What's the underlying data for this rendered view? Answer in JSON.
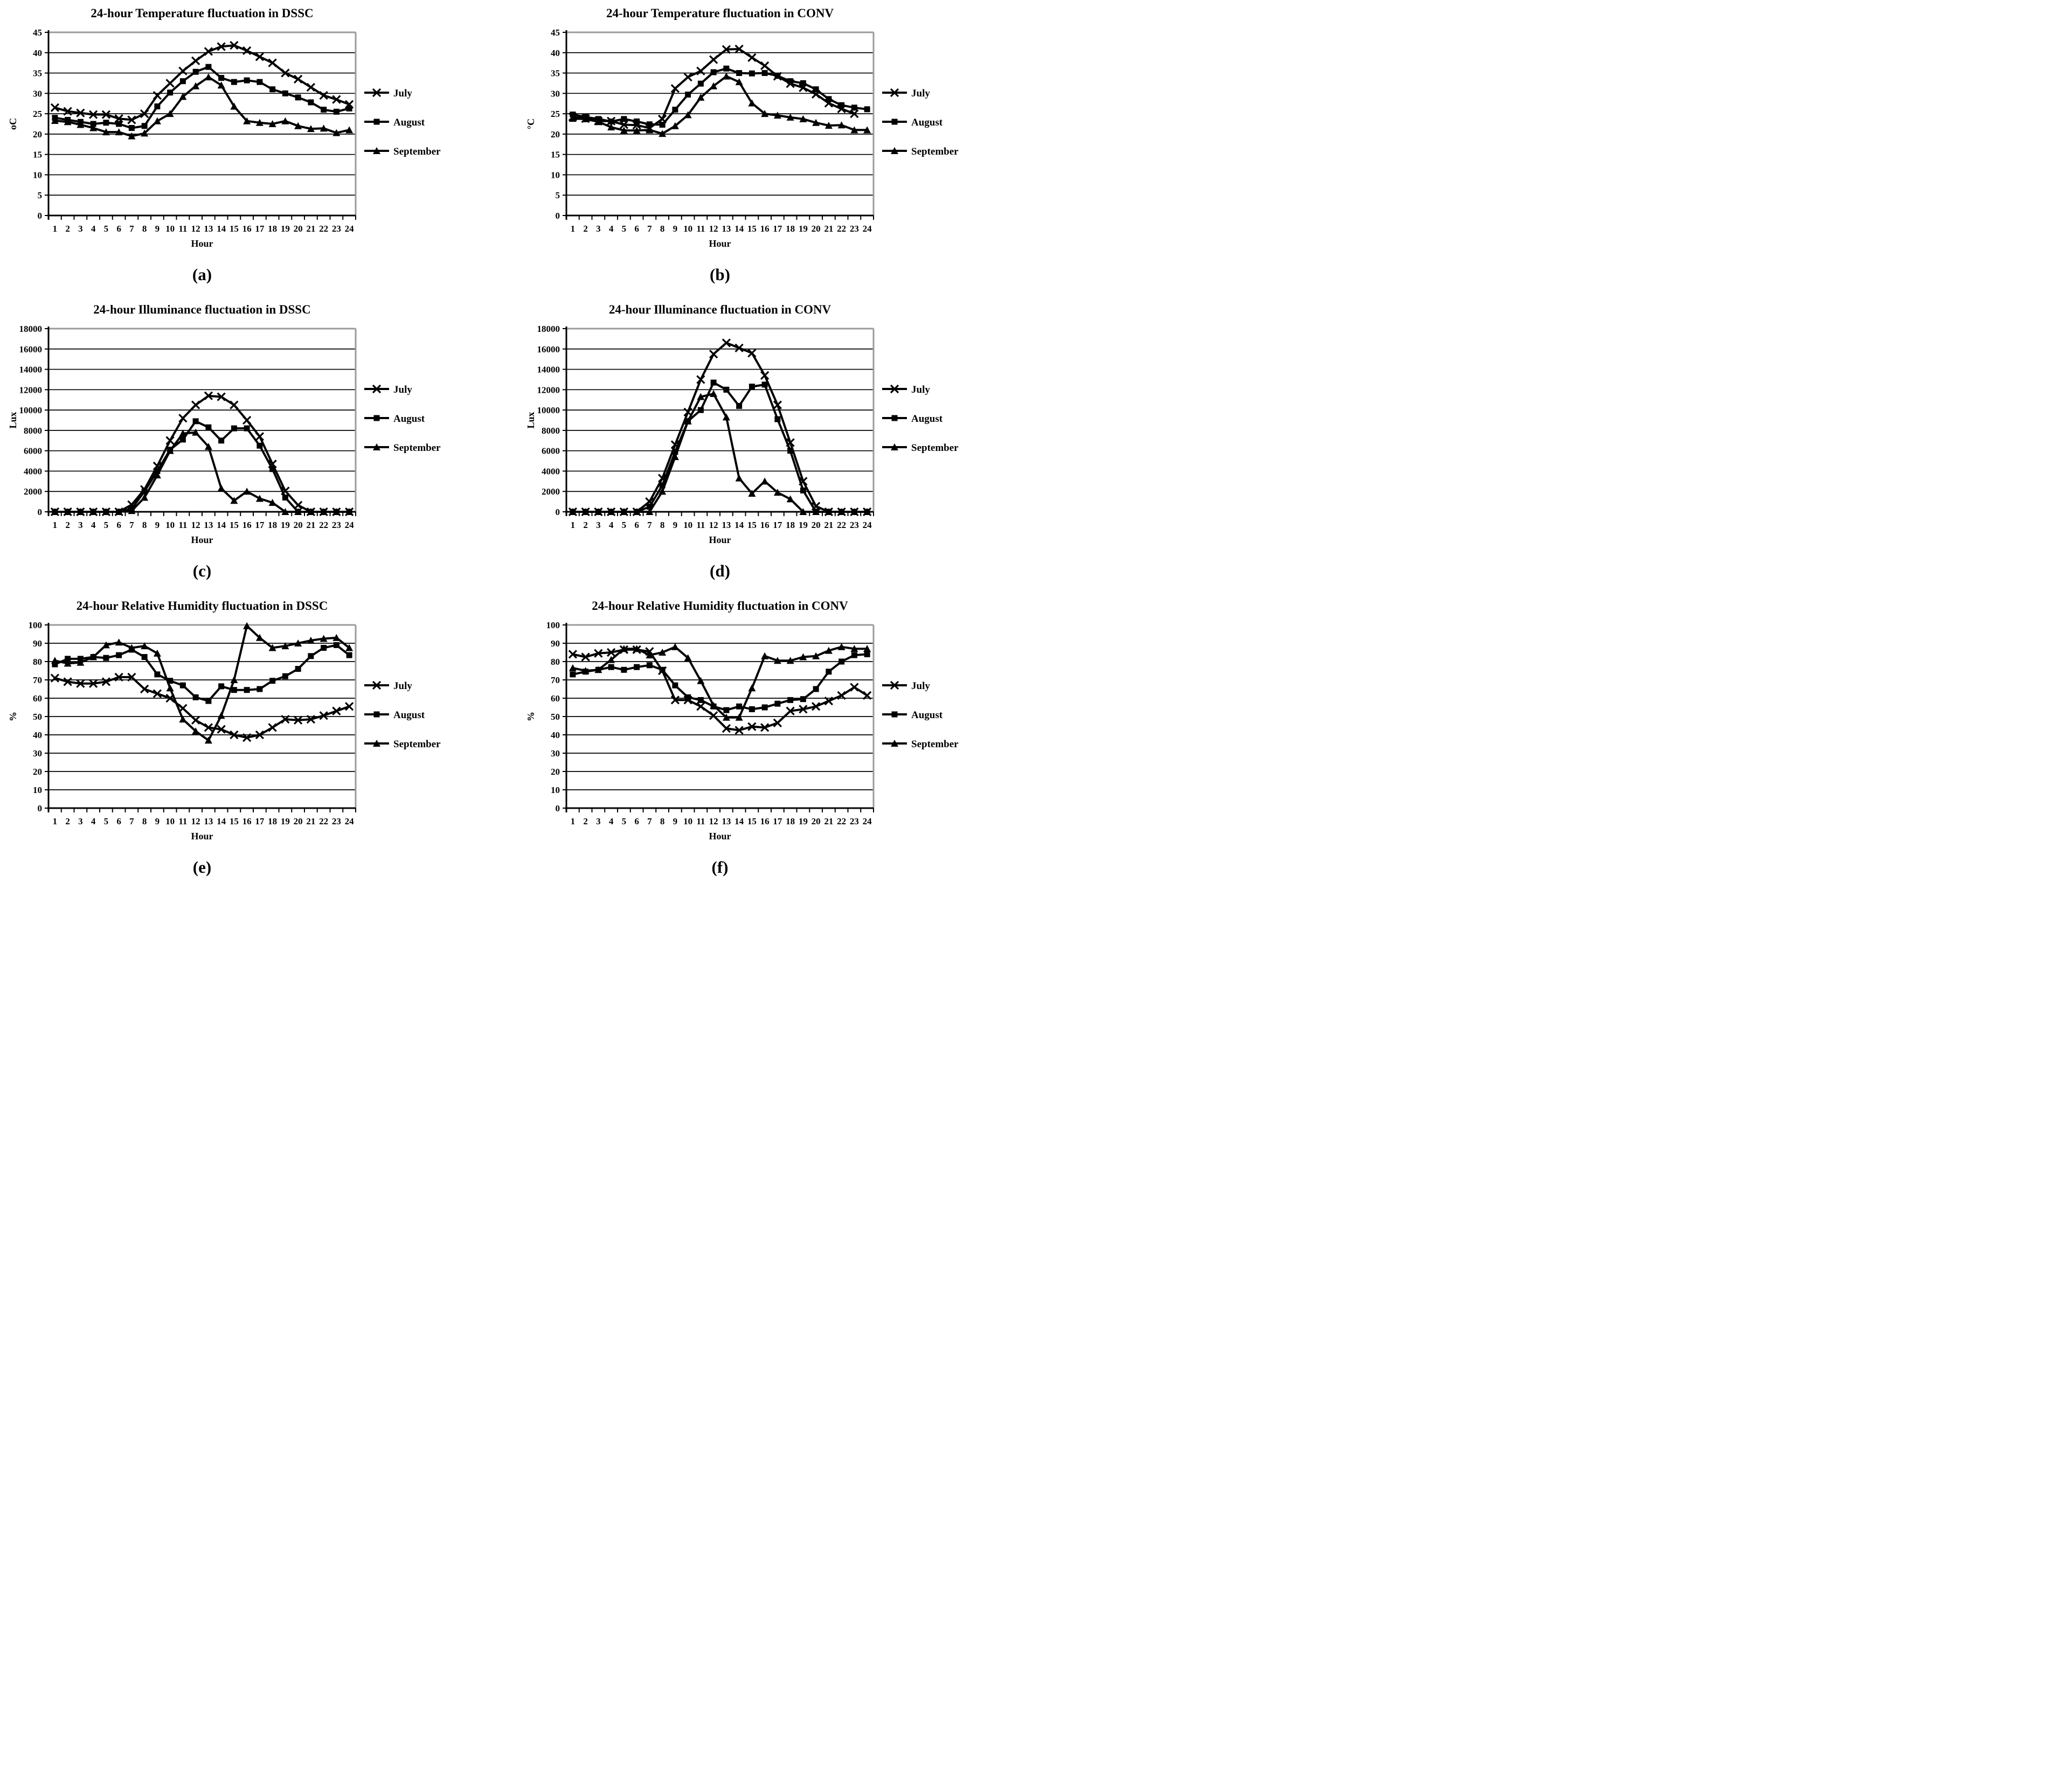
{
  "figure": {
    "type": "six-panel line chart figure",
    "line_color": "#000000",
    "plot_border_top_color": "#9b9b9b",
    "background": "#ffffff",
    "legend_position": "right",
    "marker_legend": {
      "July": "x-marker",
      "August": "filled-square-marker",
      "September": "filled-triangle-marker"
    }
  },
  "chart_data": [
    {
      "id": "a",
      "type": "line",
      "caption": "(a)",
      "title": "24-hour Temperature fluctuation in DSSC",
      "xlabel": "Hour",
      "ylabel": "oC",
      "ylim": [
        0,
        45
      ],
      "yticks": [
        0,
        5,
        10,
        15,
        20,
        25,
        30,
        35,
        40,
        45
      ],
      "x": [
        1,
        2,
        3,
        4,
        5,
        6,
        7,
        8,
        9,
        10,
        11,
        12,
        13,
        14,
        15,
        16,
        17,
        18,
        19,
        20,
        21,
        22,
        23,
        24
      ],
      "grid": true,
      "series": [
        {
          "name": "July",
          "marker": "x",
          "values": [
            26.5,
            25.6,
            25.2,
            24.8,
            24.8,
            23.8,
            23.5,
            25,
            29.5,
            32.5,
            35.5,
            38,
            40.3,
            41.5,
            41.8,
            40.5,
            39,
            37.5,
            35,
            33.5,
            31.5,
            29.5,
            28.5,
            27.3
          ]
        },
        {
          "name": "August",
          "marker": "square",
          "values": [
            24,
            23.5,
            23,
            22.5,
            22.8,
            22.5,
            21.5,
            22,
            26.8,
            30.2,
            33,
            35.3,
            36.5,
            33.8,
            32.8,
            33.2,
            32.8,
            31,
            30,
            29,
            27.8,
            26,
            25.5,
            26.3
          ]
        },
        {
          "name": "September",
          "marker": "triangle",
          "values": [
            23.3,
            23,
            22.3,
            21.5,
            20.5,
            20.5,
            19.5,
            20.2,
            23.2,
            25,
            29.2,
            31.8,
            34,
            32,
            26.8,
            23.2,
            22.8,
            22.5,
            23.2,
            22,
            21.3,
            21.4,
            20.3,
            21
          ]
        }
      ]
    },
    {
      "id": "b",
      "type": "line",
      "caption": "(b)",
      "title": "24-hour Temperature fluctuation in CONV",
      "xlabel": "Hour",
      "ylabel": "°C",
      "ylim": [
        0,
        45
      ],
      "yticks": [
        0,
        5,
        10,
        15,
        20,
        25,
        30,
        35,
        40,
        45
      ],
      "x": [
        1,
        2,
        3,
        4,
        5,
        6,
        7,
        8,
        9,
        10,
        11,
        12,
        13,
        14,
        15,
        16,
        17,
        18,
        19,
        20,
        21,
        22,
        23,
        24
      ],
      "grid": true,
      "series": [
        {
          "name": "July",
          "marker": "x",
          "values": [
            24.2,
            23.8,
            23.2,
            23.2,
            22.3,
            22.2,
            21.5,
            23.7,
            31.2,
            34,
            35.5,
            38.3,
            40.8,
            40.9,
            38.8,
            36.8,
            34.2,
            32.4,
            31.4,
            29.8,
            27.6,
            26.2,
            25,
            null
          ]
        },
        {
          "name": "August",
          "marker": "square",
          "values": [
            24.8,
            24.2,
            23.7,
            23.1,
            23.7,
            23.1,
            22.4,
            22.3,
            26,
            29.7,
            32.4,
            35.2,
            36.1,
            35,
            34.9,
            35,
            34.3,
            33,
            32.5,
            31,
            28.6,
            27.1,
            26.5,
            26.1
          ]
        },
        {
          "name": "September",
          "marker": "triangle",
          "values": [
            23.8,
            23.7,
            23,
            21.7,
            20.9,
            20.9,
            21,
            20.1,
            22,
            24.7,
            29,
            31.8,
            34.2,
            32.8,
            27.6,
            25,
            24.6,
            24.1,
            23.7,
            22.8,
            22.1,
            22.2,
            21,
            21
          ]
        }
      ]
    },
    {
      "id": "c",
      "type": "line",
      "caption": "(c)",
      "title": "24-hour Illuminance fluctuation in DSSC",
      "xlabel": "Hour",
      "ylabel": "Lux",
      "ylim": [
        0,
        18000
      ],
      "yticks": [
        0,
        2000,
        4000,
        6000,
        8000,
        10000,
        12000,
        14000,
        16000,
        18000
      ],
      "x": [
        1,
        2,
        3,
        4,
        5,
        6,
        7,
        8,
        9,
        10,
        11,
        12,
        13,
        14,
        15,
        16,
        17,
        18,
        19,
        20,
        21,
        22,
        23,
        24
      ],
      "grid": true,
      "series": [
        {
          "name": "July",
          "marker": "x",
          "values": [
            0,
            0,
            0,
            0,
            0,
            0,
            700,
            2200,
            4500,
            7000,
            9200,
            10500,
            11400,
            11300,
            10500,
            9000,
            7400,
            4700,
            2050,
            650,
            0,
            0,
            0,
            0
          ]
        },
        {
          "name": "August",
          "marker": "square",
          "values": [
            0,
            0,
            0,
            0,
            0,
            0,
            300,
            2000,
            4000,
            6100,
            7100,
            8900,
            8300,
            7000,
            8200,
            8200,
            6500,
            4200,
            1400,
            0,
            0,
            0,
            0,
            0
          ]
        },
        {
          "name": "September",
          "marker": "triangle",
          "values": [
            0,
            0,
            0,
            0,
            0,
            0,
            100,
            1400,
            3600,
            6000,
            7700,
            7800,
            6400,
            2300,
            1100,
            2000,
            1300,
            900,
            0,
            0,
            0,
            0,
            0,
            0
          ]
        }
      ]
    },
    {
      "id": "d",
      "type": "line",
      "caption": "(d)",
      "title": "24-hour Illuminance fluctuation in CONV",
      "xlabel": "Hour",
      "ylabel": "Lux",
      "ylim": [
        0,
        18000
      ],
      "yticks": [
        0,
        2000,
        4000,
        6000,
        8000,
        10000,
        12000,
        14000,
        16000,
        18000
      ],
      "x": [
        1,
        2,
        3,
        4,
        5,
        6,
        7,
        8,
        9,
        10,
        11,
        12,
        13,
        14,
        15,
        16,
        17,
        18,
        19,
        20,
        21,
        22,
        23,
        24
      ],
      "grid": true,
      "series": [
        {
          "name": "July",
          "marker": "x",
          "values": [
            0,
            0,
            0,
            0,
            0,
            0,
            1000,
            3300,
            6600,
            9800,
            13000,
            15500,
            16600,
            16100,
            15600,
            13400,
            10500,
            6800,
            3000,
            550,
            0,
            0,
            0,
            0
          ]
        },
        {
          "name": "August",
          "marker": "square",
          "values": [
            0,
            0,
            0,
            0,
            0,
            0,
            500,
            2600,
            5900,
            8900,
            10000,
            12700,
            12000,
            10400,
            12300,
            12500,
            9100,
            6000,
            2100,
            0,
            0,
            0,
            0,
            0
          ]
        },
        {
          "name": "September",
          "marker": "triangle",
          "values": [
            0,
            0,
            0,
            0,
            0,
            0,
            0,
            2000,
            5400,
            8900,
            11300,
            11600,
            9300,
            3300,
            1800,
            3000,
            1900,
            1250,
            0,
            0,
            0,
            0,
            0,
            0
          ]
        }
      ]
    },
    {
      "id": "e",
      "type": "line",
      "caption": "(e)",
      "title": "24-hour Relative Humidity fluctuation in DSSC",
      "xlabel": "Hour",
      "ylabel": "%",
      "ylim": [
        0,
        100
      ],
      "yticks": [
        0,
        10,
        20,
        30,
        40,
        50,
        60,
        70,
        80,
        90,
        100
      ],
      "x": [
        1,
        2,
        3,
        4,
        5,
        6,
        7,
        8,
        9,
        10,
        11,
        12,
        13,
        14,
        15,
        16,
        17,
        18,
        19,
        20,
        21,
        22,
        23,
        24
      ],
      "grid": true,
      "series": [
        {
          "name": "July",
          "marker": "x",
          "values": [
            71,
            69,
            68,
            68,
            69,
            71.5,
            71.5,
            65,
            62.5,
            60,
            54.5,
            48,
            44,
            43,
            40,
            38.5,
            40,
            44,
            48.5,
            48,
            48.5,
            50.5,
            53,
            55.5
          ]
        },
        {
          "name": "August",
          "marker": "square",
          "values": [
            78.5,
            81.5,
            81.5,
            82.5,
            82,
            83.5,
            86.5,
            82.5,
            73,
            69.5,
            67,
            60.5,
            58.5,
            66.5,
            64.5,
            64.5,
            65,
            69.5,
            72,
            76,
            83,
            87.5,
            89,
            83.5
          ]
        },
        {
          "name": "September",
          "marker": "triangle",
          "values": [
            80.5,
            79,
            79.5,
            82.5,
            89,
            90.5,
            87.5,
            88.5,
            84.5,
            65.5,
            48.5,
            42,
            37,
            50.5,
            70,
            99.5,
            93,
            87.5,
            88.5,
            90,
            91.5,
            92.5,
            93,
            87.5
          ]
        }
      ]
    },
    {
      "id": "f",
      "type": "line",
      "caption": "(f)",
      "title": "24-hour Relative Humidity fluctuation in CONV",
      "xlabel": "Hour",
      "ylabel": "%",
      "ylim": [
        0,
        100
      ],
      "yticks": [
        0,
        10,
        20,
        30,
        40,
        50,
        60,
        70,
        80,
        90,
        100
      ],
      "x": [
        1,
        2,
        3,
        4,
        5,
        6,
        7,
        8,
        9,
        10,
        11,
        12,
        13,
        14,
        15,
        16,
        17,
        18,
        19,
        20,
        21,
        22,
        23,
        24
      ],
      "grid": true,
      "series": [
        {
          "name": "July",
          "marker": "x",
          "values": [
            84,
            82.5,
            84.5,
            85,
            86.5,
            86.5,
            85.5,
            75,
            59,
            59,
            55.5,
            50.5,
            43.5,
            42.5,
            44.5,
            44,
            46.5,
            53,
            54,
            55.5,
            58.5,
            61.5,
            66,
            61.5
          ]
        },
        {
          "name": "August",
          "marker": "square",
          "values": [
            73,
            74.5,
            75.5,
            77,
            75.5,
            77,
            78,
            75.5,
            67,
            60.5,
            59,
            55.5,
            53.5,
            55.5,
            54,
            55,
            57,
            59,
            59.5,
            65,
            74.5,
            80,
            83.5,
            84
          ]
        },
        {
          "name": "September",
          "marker": "triangle",
          "values": [
            76.5,
            75,
            75.5,
            81,
            87,
            87,
            83.5,
            85,
            88,
            82,
            69.5,
            56,
            49.5,
            49.5,
            65.5,
            83,
            80.5,
            80.5,
            82.5,
            83,
            86,
            88,
            87,
            87
          ]
        }
      ]
    }
  ]
}
